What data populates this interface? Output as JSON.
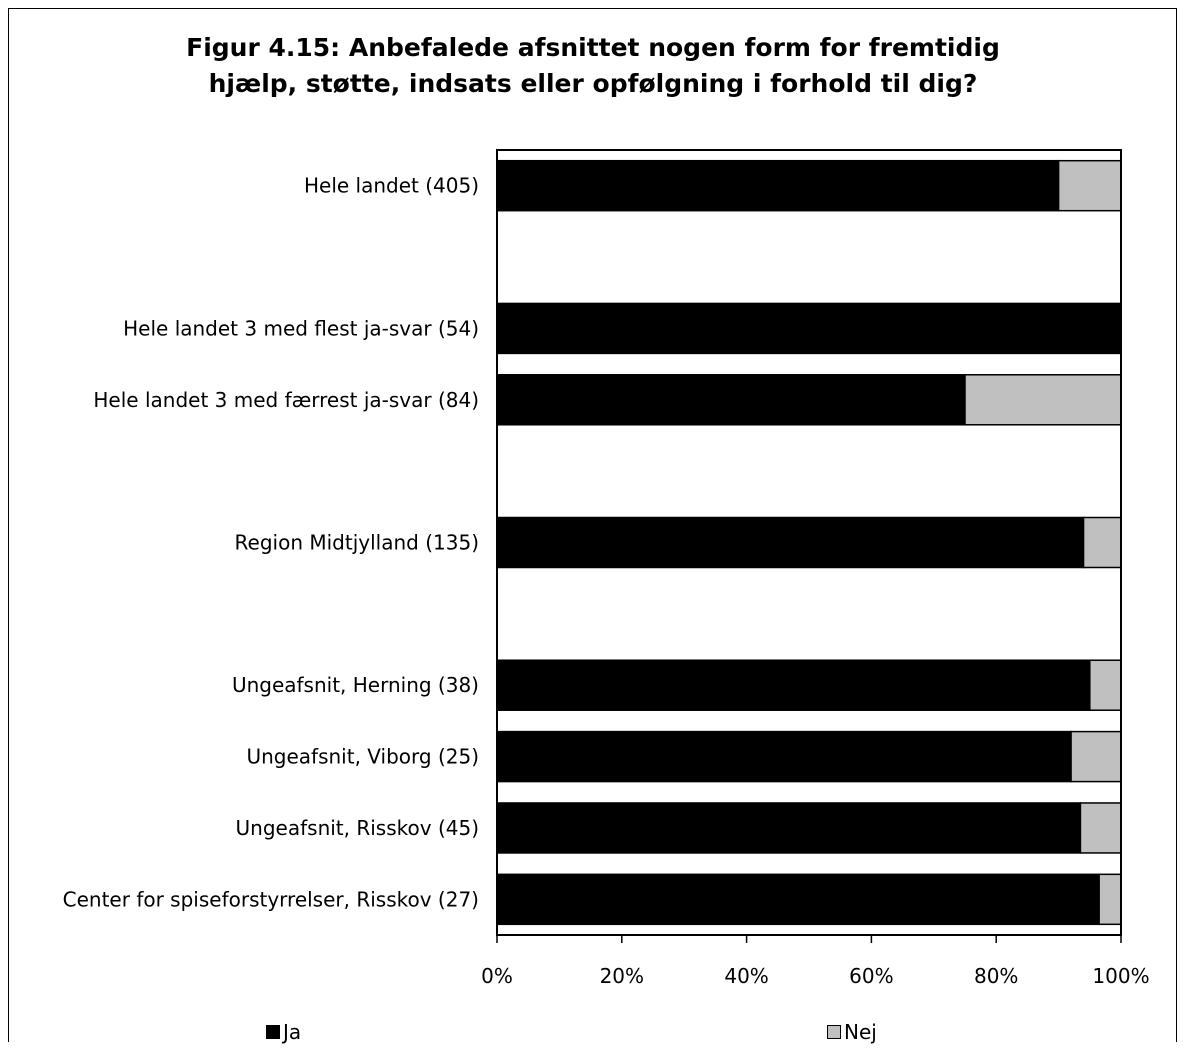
{
  "chart_data": {
    "type": "bar",
    "orientation": "horizontal",
    "stacked": "percent",
    "title_lines": [
      "Figur 4.15: Anbefalede afsnittet nogen form for fremtidig",
      "hjælp, støtte, indsats eller opfølgning i forhold til dig?"
    ],
    "categories": [
      "Hele landet  (405)",
      "",
      "Hele landet 3 med flest ja-svar (54)",
      "Hele landet 3 med færrest ja-svar (84)",
      "",
      "Region Midtjylland (135)",
      "",
      "Ungeafsnit, Herning (38)",
      "Ungeafsnit, Viborg (25)",
      "Ungeafsnit, Risskov (45)",
      "Center for spiseforstyrrelser, Risskov (27)"
    ],
    "series": [
      {
        "name": "Ja",
        "color": "#000000",
        "values": [
          90,
          null,
          100,
          75,
          null,
          94,
          null,
          95,
          92,
          93.5,
          96.5
        ]
      },
      {
        "name": "Nej",
        "color": "#c0c0c0",
        "values": [
          10,
          null,
          0,
          25,
          null,
          6,
          null,
          5,
          8,
          6.5,
          3.5
        ]
      }
    ],
    "xlim": [
      0,
      100
    ],
    "xticks": [
      "0%",
      "20%",
      "40%",
      "60%",
      "80%",
      "100%"
    ],
    "legend": "bottom"
  }
}
